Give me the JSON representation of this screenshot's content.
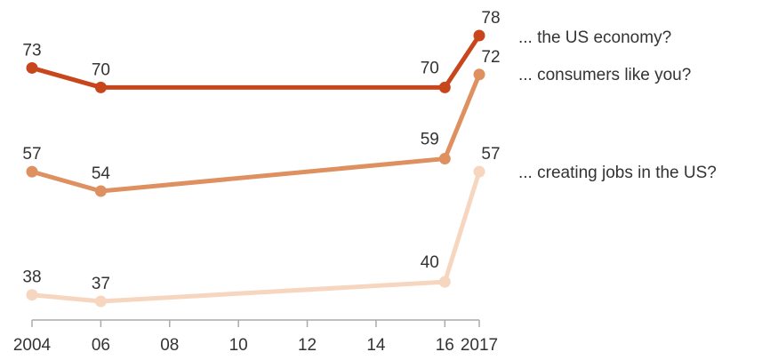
{
  "chart_data": {
    "type": "line",
    "x": [
      2004,
      2006,
      2016,
      2017
    ],
    "xticks": [
      2004,
      2006,
      2008,
      2010,
      2012,
      2014,
      2016,
      2017
    ],
    "xtick_labels": [
      "2004",
      "06",
      "08",
      "10",
      "12",
      "14",
      "16",
      "2017"
    ],
    "xlim": [
      2004,
      2017
    ],
    "grid": false,
    "legend": "right",
    "series": [
      {
        "name": "... the US economy?",
        "values": [
          73,
          70,
          70,
          78
        ],
        "color": "#c8461c"
      },
      {
        "name": "... consumers like you?",
        "values": [
          57,
          54,
          59,
          72
        ],
        "color": "#df9060"
      },
      {
        "name": "... creating jobs in the US?",
        "values": [
          38,
          37,
          40,
          57
        ],
        "color": "#f7d6bf"
      }
    ]
  }
}
